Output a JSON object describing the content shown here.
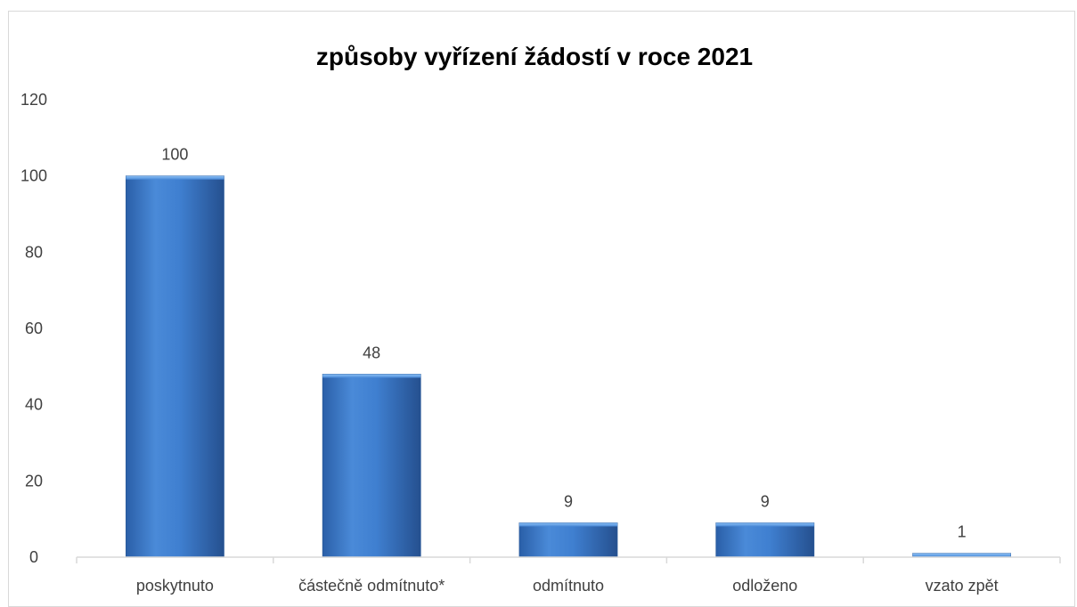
{
  "chart_data": {
    "type": "bar",
    "title": "způsoby vyřízení žádostí v roce 2021",
    "categories": [
      "poskytnuto",
      "částečně odmítnuto*",
      "odmítnuto",
      "odloženo",
      "vzato zpět"
    ],
    "values": [
      100,
      48,
      9,
      9,
      1
    ],
    "xlabel": "",
    "ylabel": "",
    "ylim": [
      0,
      120
    ],
    "yticks": [
      "0",
      "20",
      "40",
      "60",
      "80",
      "100",
      "120"
    ],
    "data_labels": [
      "100",
      "48",
      "9",
      "9",
      "1"
    ],
    "grid": false,
    "legend": "none",
    "colors": {
      "bar_light": "#5b9be0",
      "bar_mid": "#3a7bd5",
      "bar_dark": "#1f4f8f",
      "axis": "#d9d9d9"
    }
  }
}
